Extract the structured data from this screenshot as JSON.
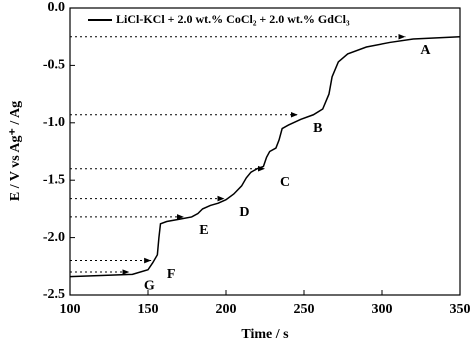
{
  "chart_data": {
    "type": "line",
    "xlabel": "Time / s",
    "ylabel": "E / V vs Ag⁺ / Ag",
    "xlim": [
      100,
      350
    ],
    "ylim": [
      -2.5,
      0
    ],
    "xticks": [
      100,
      150,
      200,
      250,
      300,
      350
    ],
    "yticks": [
      {
        "value": -2.5,
        "label": "-2.5"
      },
      {
        "value": -2,
        "label": "-2.0"
      },
      {
        "value": -1.5,
        "label": "-1.5"
      },
      {
        "value": -1,
        "label": "-1.0"
      },
      {
        "value": -0.5,
        "label": "-0.5"
      },
      {
        "value": 0,
        "label": "0.0"
      }
    ],
    "x": [
      100,
      120,
      140,
      150,
      153,
      156,
      157,
      158,
      162,
      170,
      178,
      182,
      185,
      190,
      195,
      200,
      205,
      210,
      213,
      216,
      220,
      224,
      226,
      228,
      232,
      234,
      236,
      240,
      248,
      256,
      262,
      266,
      268,
      272,
      278,
      290,
      305,
      320,
      335,
      350
    ],
    "series": [
      {
        "name": "LiCl-KCl + 2.0 wt.% CoCl₂ + 2.0 wt.% GdCl₃",
        "color": "#000000",
        "values": [
          -2.34,
          -2.33,
          -2.32,
          -2.28,
          -2.22,
          -2.15,
          -2.0,
          -1.88,
          -1.86,
          -1.84,
          -1.82,
          -1.79,
          -1.75,
          -1.72,
          -1.7,
          -1.67,
          -1.62,
          -1.55,
          -1.48,
          -1.43,
          -1.4,
          -1.38,
          -1.3,
          -1.25,
          -1.22,
          -1.15,
          -1.05,
          -1.02,
          -0.97,
          -0.93,
          -0.88,
          -0.75,
          -0.6,
          -0.47,
          -0.4,
          -0.34,
          -0.3,
          -0.27,
          -0.26,
          -0.25
        ]
      }
    ],
    "annotations": [
      {
        "text": "A",
        "x": 315,
        "y": -0.25
      },
      {
        "text": "B",
        "x": 246,
        "y": -0.93
      },
      {
        "text": "C",
        "x": 225,
        "y": -1.4
      },
      {
        "text": "D",
        "x": 199,
        "y": -1.66
      },
      {
        "text": "E",
        "x": 173,
        "y": -1.82
      },
      {
        "text": "F",
        "x": 152,
        "y": -2.2
      },
      {
        "text": "G",
        "x": 138,
        "y": -2.3
      }
    ]
  }
}
